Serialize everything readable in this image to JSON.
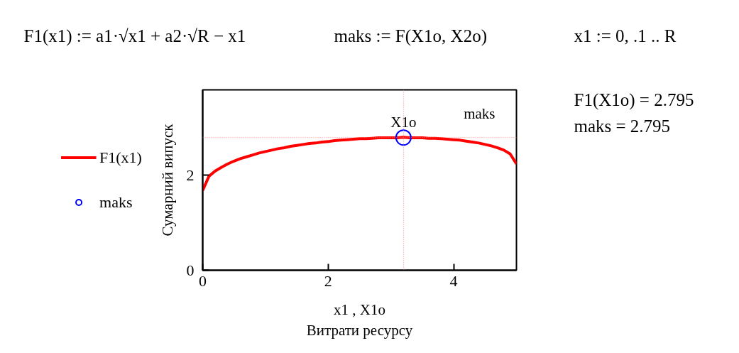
{
  "chart_data": {
    "type": "line",
    "annotations": [
      "F1(x1) := a1·√x1 + a2·√R − x1",
      "maks := F(X1o, X2o)",
      "x1 := 0, .1 .. R",
      "F1(X1o) = 2.795",
      "maks = 2.795",
      "Витрати ресурсу"
    ],
    "xlabel": "x1 , X1o",
    "ylabel": "Сумарний випуск",
    "x": [
      0,
      0.1,
      0.2,
      0.3,
      0.4,
      0.5,
      0.6,
      0.7,
      0.8,
      0.9,
      1.0,
      1.1,
      1.2,
      1.3,
      1.4,
      1.5,
      1.6,
      1.7,
      1.8,
      1.9,
      2.0,
      2.1,
      2.2,
      2.3,
      2.4,
      2.5,
      2.6,
      2.7,
      2.8,
      2.9,
      3.0,
      3.1,
      3.2,
      3.3,
      3.4,
      3.5,
      3.6,
      3.7,
      3.8,
      3.9,
      4.0,
      4.1,
      4.2,
      4.3,
      4.4,
      4.5,
      4.6,
      4.7,
      4.8,
      4.9,
      5.0
    ],
    "series": [
      {
        "name": "F1(x1)",
        "color": "#ff0000",
        "values": [
          1.68,
          1.98,
          2.09,
          2.17,
          2.24,
          2.3,
          2.35,
          2.39,
          2.43,
          2.47,
          2.5,
          2.53,
          2.56,
          2.58,
          2.61,
          2.63,
          2.65,
          2.67,
          2.68,
          2.7,
          2.71,
          2.73,
          2.74,
          2.75,
          2.76,
          2.77,
          2.77,
          2.78,
          2.79,
          2.79,
          2.79,
          2.79,
          2.8,
          2.79,
          2.79,
          2.79,
          2.78,
          2.78,
          2.77,
          2.76,
          2.75,
          2.74,
          2.72,
          2.7,
          2.68,
          2.65,
          2.62,
          2.58,
          2.53,
          2.45,
          2.24
        ]
      },
      {
        "name": "maks",
        "type": "scatter",
        "marker": "circle",
        "color": "#0000ff",
        "x": [
          3.2
        ],
        "values": [
          2.795
        ]
      }
    ],
    "ref_lines": [
      {
        "axis": "x",
        "value": 3.2,
        "label": "X1o",
        "color": "#ff8080",
        "line_style": "dotted"
      },
      {
        "axis": "y",
        "value": 2.795,
        "label": "maks",
        "color": "#ff8080",
        "line_style": "dotted"
      }
    ],
    "xlim": [
      0,
      5
    ],
    "ylim": [
      0,
      3.8
    ],
    "xticks": [
      0,
      2,
      4
    ],
    "yticks": [
      0,
      2
    ],
    "legend": "left",
    "grid": false
  }
}
